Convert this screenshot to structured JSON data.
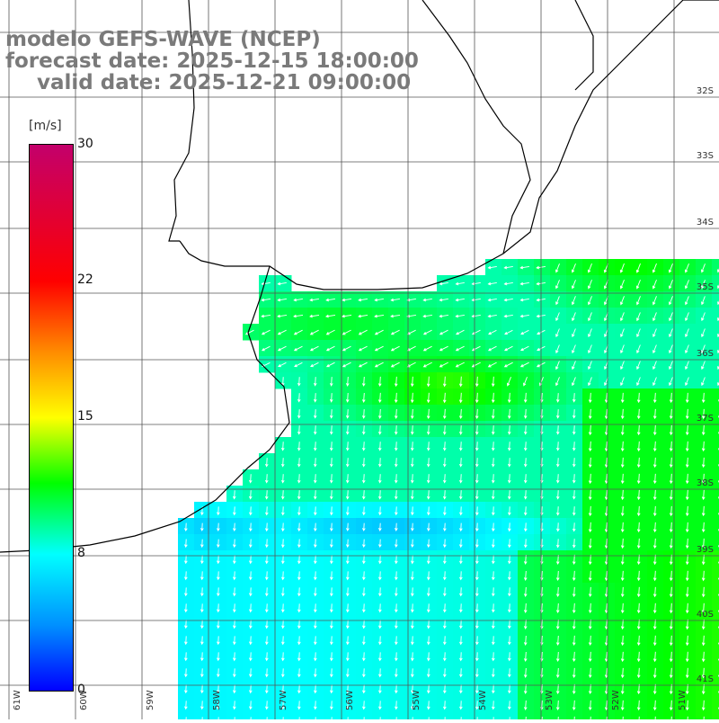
{
  "title": {
    "line1": "modelo GEFS-WAVE (NCEP)",
    "line2": "forecast date: 2025-12-15 18:00:00",
    "line3": "valid date: 2025-12-21 09:00:00"
  },
  "colorbar": {
    "unit": "[m/s]",
    "ticks": [
      "30",
      "22",
      "15",
      "8",
      "0"
    ],
    "tick_values": [
      30,
      22,
      15,
      8,
      0
    ],
    "min": 0,
    "max": 30,
    "colors": [
      "#0000ff",
      "#0090ff",
      "#00ffff",
      "#00ff00",
      "#ffff00",
      "#ff8c00",
      "#ff0000",
      "#c3006b"
    ]
  },
  "axes": {
    "lon_labels": [
      "61W",
      "60W",
      "59W",
      "58W",
      "57W",
      "56W",
      "55W",
      "54W",
      "53W",
      "52W",
      "51W"
    ],
    "lat_labels": [
      "32S",
      "33S",
      "34S",
      "35S",
      "36S",
      "37S",
      "38S",
      "39S",
      "40S",
      "41S"
    ]
  },
  "colors": {
    "land": "#ffffff",
    "grid": "#555555",
    "coast": "#000000",
    "arrow": "#ffffff"
  }
}
